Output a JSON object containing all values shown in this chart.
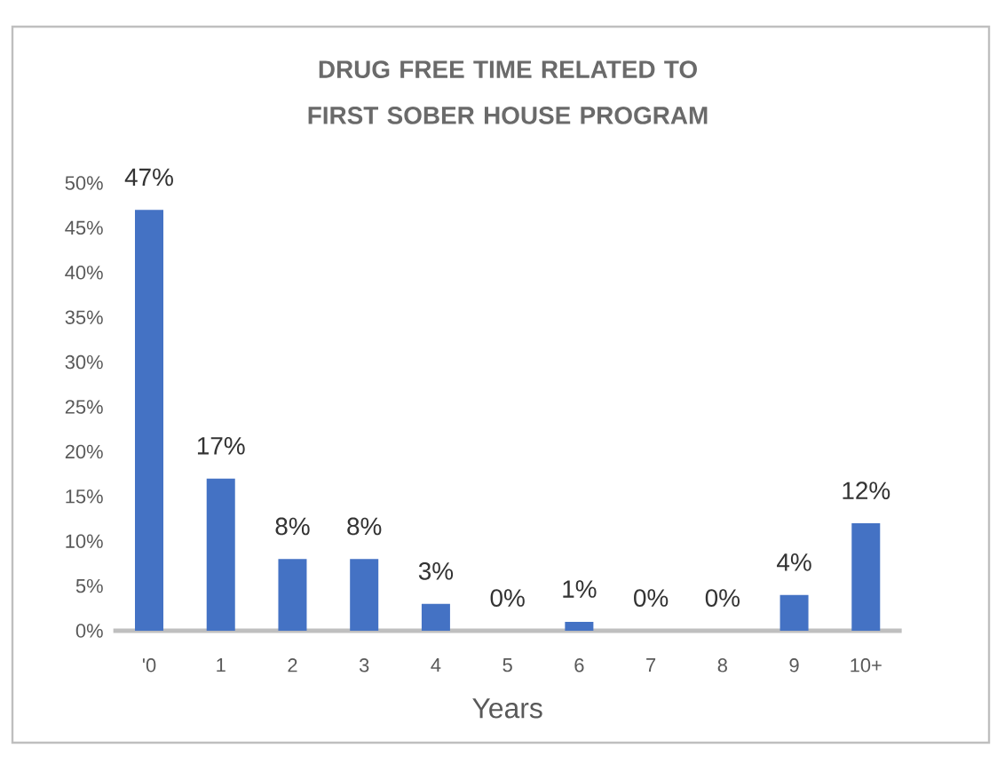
{
  "chart_data": {
    "type": "bar",
    "title": "DRUG FREE TIME RELATED TO FIRST SOBER HOUSE PROGRAM",
    "xlabel": "Years",
    "categories": [
      "'0",
      "1",
      "2",
      "3",
      "4",
      "5",
      "6",
      "7",
      "8",
      "9",
      "10+"
    ],
    "values": [
      47,
      17,
      8,
      8,
      3,
      0,
      1,
      0,
      0,
      4,
      12
    ],
    "value_labels": [
      "47%",
      "17%",
      "8%",
      "8%",
      "3%",
      "0%",
      "1%",
      "0%",
      "0%",
      "4%",
      "12%"
    ],
    "color": "#4472c4",
    "ylim": [
      0,
      50
    ],
    "yticks": [
      {
        "value": 0,
        "label": "0%"
      },
      {
        "value": 5,
        "label": "5%"
      },
      {
        "value": 10,
        "label": "10%"
      },
      {
        "value": 15,
        "label": "15%"
      },
      {
        "value": 20,
        "label": "20%"
      },
      {
        "value": 25,
        "label": "25%"
      },
      {
        "value": 30,
        "label": "30%"
      },
      {
        "value": 35,
        "label": "35%"
      },
      {
        "value": 40,
        "label": "40%"
      },
      {
        "value": 45,
        "label": "45%"
      },
      {
        "value": 50,
        "label": "50%"
      }
    ],
    "grid": false
  }
}
